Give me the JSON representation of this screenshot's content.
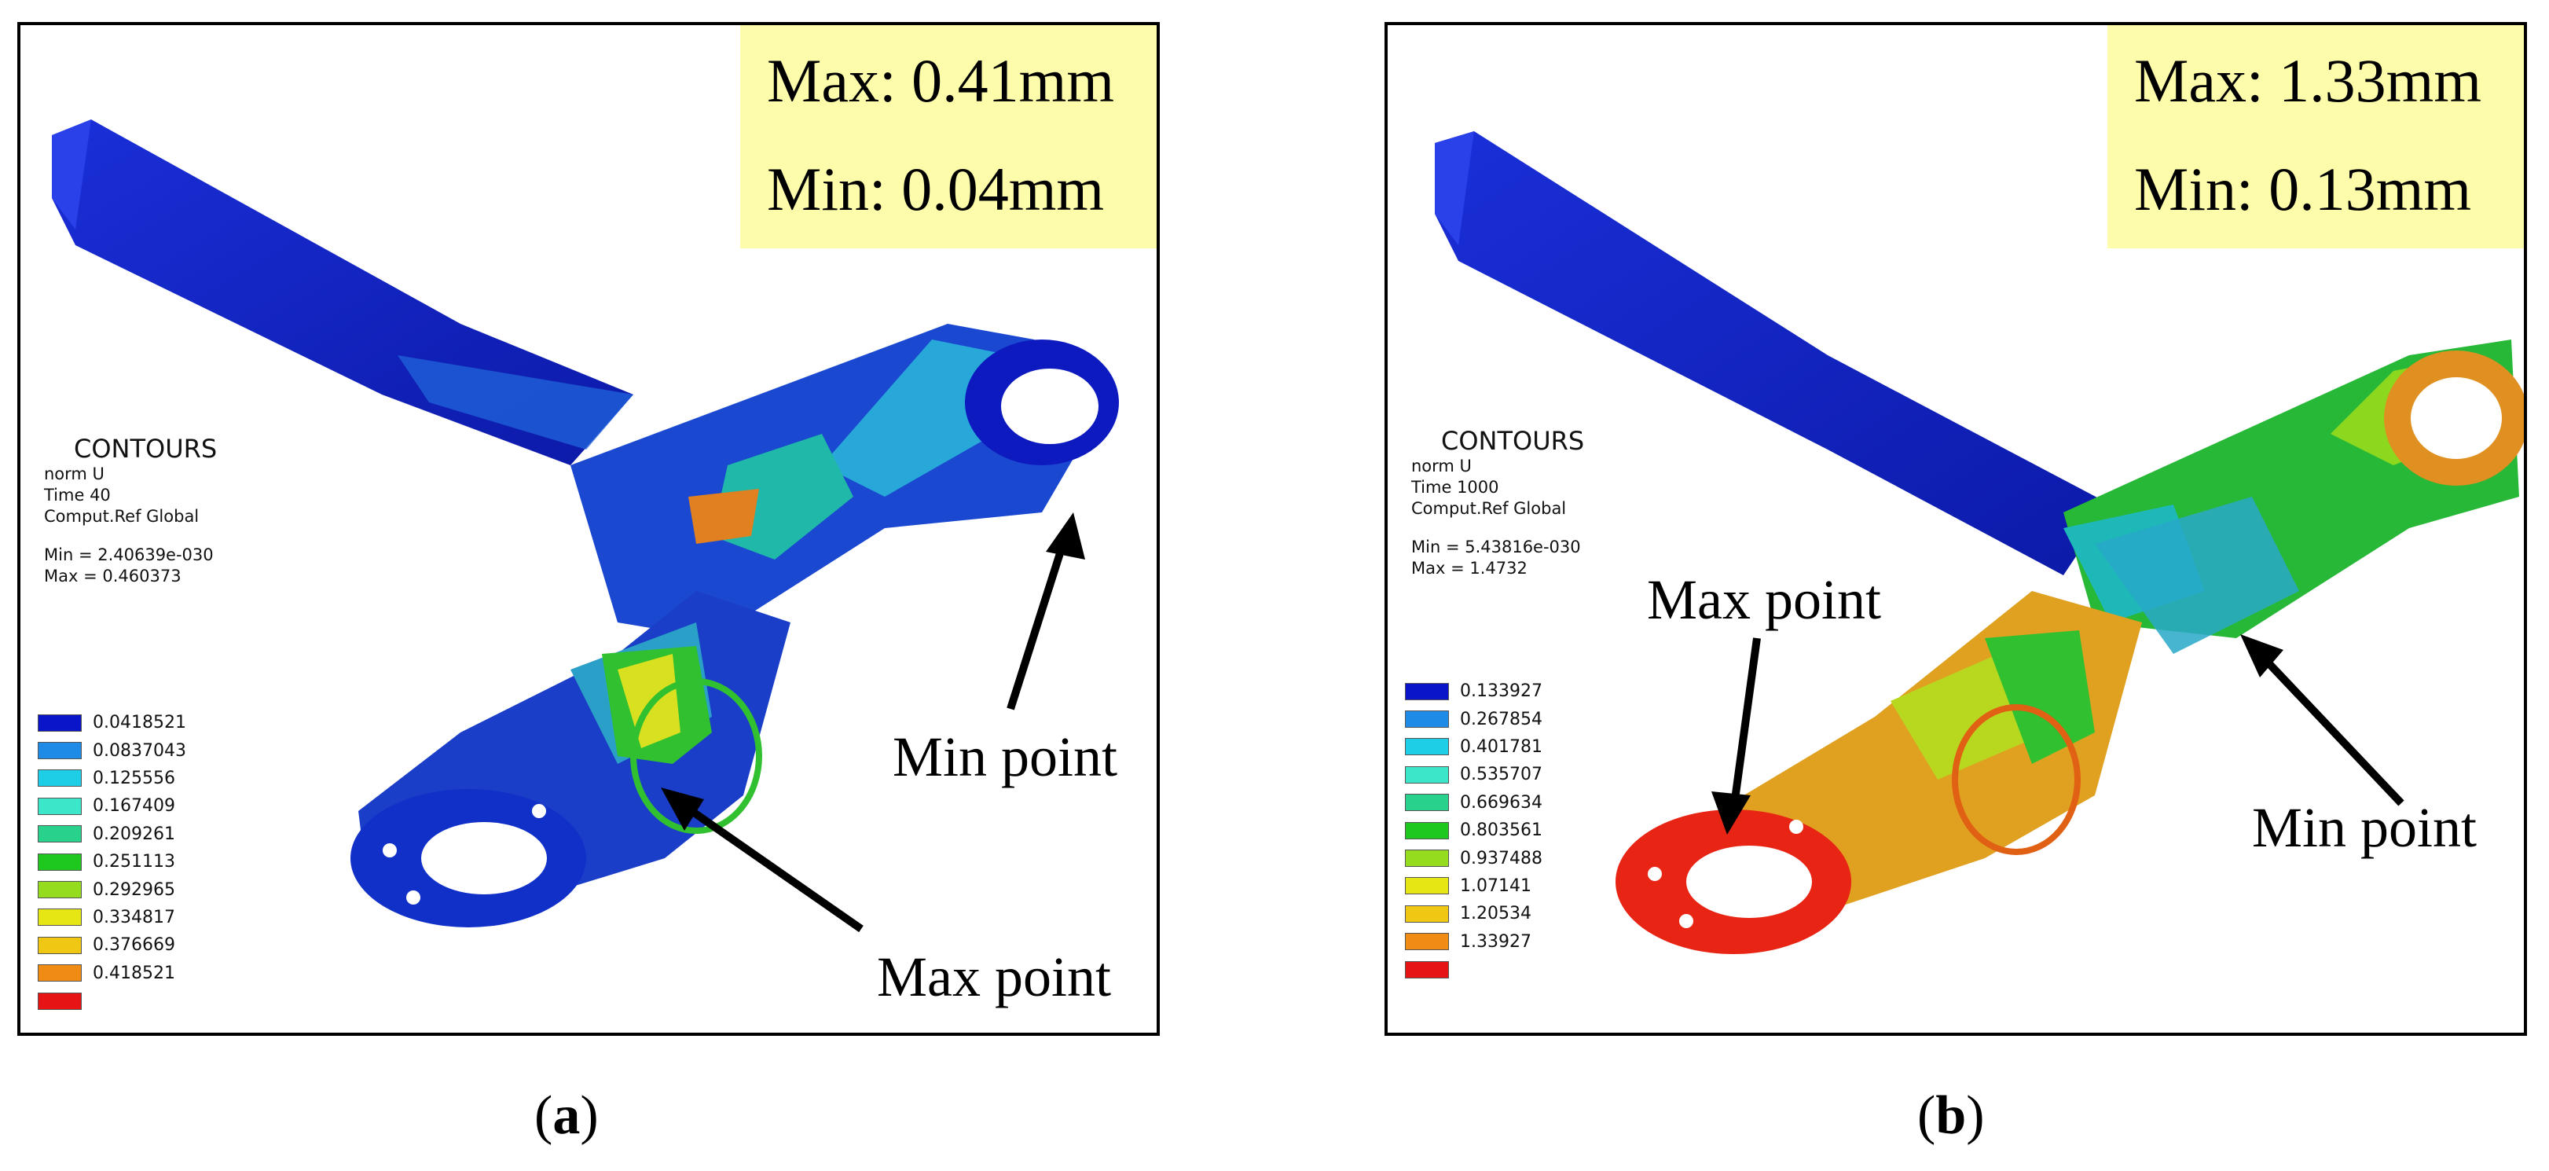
{
  "panels": [
    {
      "label": "a",
      "max_text": "Max: 0.41mm",
      "min_text": "Min: 0.04mm",
      "contours": {
        "title": "CONTOURS",
        "variable": "norm U",
        "time": "Time 40",
        "ref": "Comput.Ref Global",
        "min": "Min = 2.40639e-030",
        "max": "Max = 0.460373"
      },
      "legend": [
        "0.0418521",
        "0.0837043",
        "0.125556",
        "0.167409",
        "0.209261",
        "0.251113",
        "0.292965",
        "0.334817",
        "0.376669",
        "0.418521"
      ],
      "min_point_label": "Min point",
      "max_point_label": "Max point"
    },
    {
      "label": "b",
      "max_text": "Max: 1.33mm",
      "min_text": "Min: 0.13mm",
      "contours": {
        "title": "CONTOURS",
        "variable": "norm U",
        "time": "Time 1000",
        "ref": "Comput.Ref Global",
        "min": "Min = 5.43816e-030",
        "max": "Max = 1.4732"
      },
      "legend": [
        "0.133927",
        "0.267854",
        "0.401781",
        "0.535707",
        "0.669634",
        "0.803561",
        "0.937488",
        "1.07141",
        "1.20534",
        "1.33927"
      ],
      "min_point_label": "Min point",
      "max_point_label": "Max point"
    }
  ],
  "legend_colors": [
    "#0a14c8",
    "#1e8ce6",
    "#1ecde6",
    "#3ce6c8",
    "#28d28c",
    "#1ec81e",
    "#96dc1e",
    "#e6e614",
    "#f0c814",
    "#f08c14",
    "#e61414"
  ]
}
